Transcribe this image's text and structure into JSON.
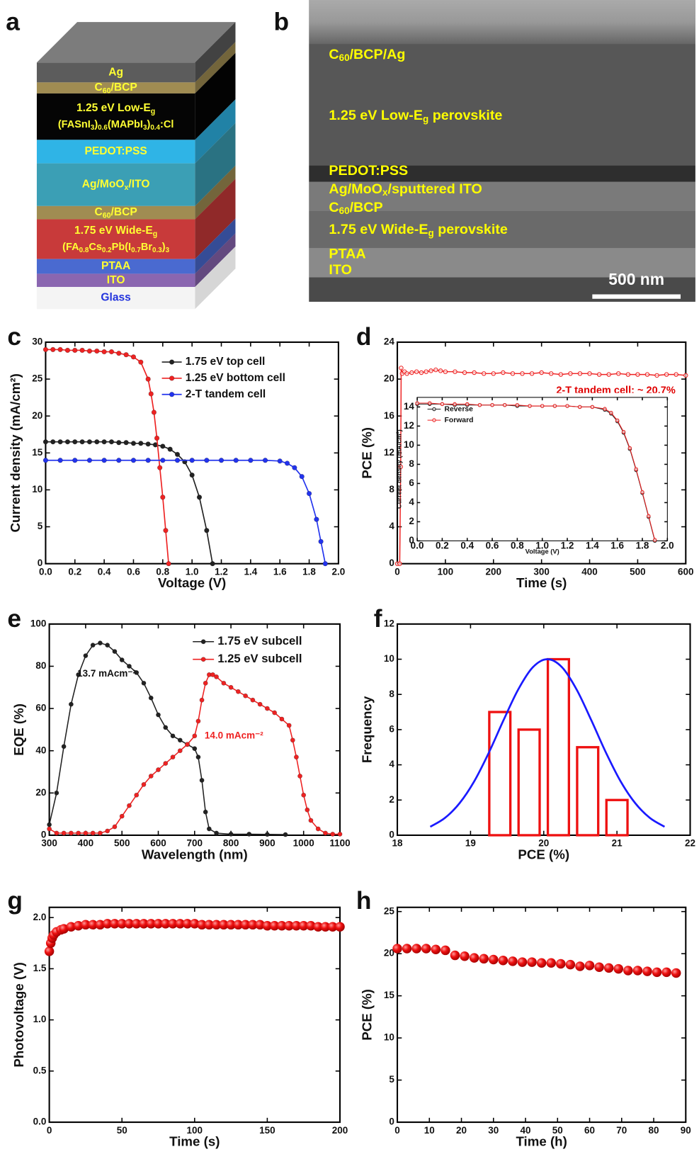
{
  "stack": {
    "panel": "a",
    "text_color": "#ffff33",
    "layers": [
      {
        "color": "#5c5c5c",
        "lines": [
          [
            "Ag"
          ]
        ]
      },
      {
        "color": "#a08c52",
        "lines": [
          [
            "C",
            {
              "sub": "60"
            },
            "/BCP"
          ]
        ]
      },
      {
        "color": "#050505",
        "lines": [
          [
            "1.25 eV Low-E",
            {
              "sub": "g"
            }
          ],
          [
            "(FASnI",
            {
              "sub": "3"
            },
            ")",
            {
              "sub": "0.6"
            },
            "(MAPbI",
            {
              "sub": "3"
            },
            ")",
            {
              "sub": "0.4"
            },
            ":Cl"
          ]
        ]
      },
      {
        "color": "#2fb4e6",
        "lines": [
          [
            "PEDOT:PSS"
          ]
        ]
      },
      {
        "color": "#3b9fb5",
        "lines": [
          [
            "Ag/MoO",
            {
              "sub": "x"
            },
            "/ITO"
          ]
        ]
      },
      {
        "color": "#a08c52",
        "lines": [
          [
            "C",
            {
              "sub": "60"
            },
            "/BCP"
          ]
        ]
      },
      {
        "color": "#c83a3a",
        "lines": [
          [
            "1.75 eV Wide-E",
            {
              "sub": "g"
            }
          ],
          [
            "(FA",
            {
              "sub": "0.8"
            },
            "Cs",
            {
              "sub": "0.2"
            },
            "Pb(I",
            {
              "sub": "0.7"
            },
            "Br",
            {
              "sub": "0.3"
            },
            ")",
            {
              "sub": "3"
            }
          ]
        ]
      },
      {
        "color": "#4a6ad0",
        "lines": [
          [
            "PTAA"
          ]
        ]
      },
      {
        "color": "#8a66b0",
        "lines": [
          [
            "ITO"
          ]
        ]
      },
      {
        "color": "#f4f4f4",
        "text_color": "#2233dd",
        "lines": [
          [
            "Glass"
          ]
        ]
      }
    ]
  },
  "sem": {
    "panel": "b",
    "text_color": "#ffff00",
    "labels": [
      [
        "C",
        {
          "sub": "60"
        },
        "/BCP/Ag"
      ],
      [
        "1.25 eV Low-E",
        {
          "sub": "g"
        },
        " perovskite"
      ],
      [
        "PEDOT:PSS"
      ],
      [
        "Ag/MoO",
        {
          "sub": "x"
        },
        "/sputtered ITO"
      ],
      [
        "C",
        {
          "sub": "60"
        },
        "/BCP"
      ],
      [
        "1.75 eV Wide-E",
        {
          "sub": "g"
        },
        " perovskite"
      ],
      [
        "PTAA"
      ],
      [
        "ITO"
      ]
    ],
    "scale_bar": "500 nm"
  },
  "chart_data": [
    {
      "type": "line",
      "panel": "c",
      "x_label": "Voltage (V)",
      "y_label": "Current density (mA/cm²)",
      "xlim": [
        0,
        2
      ],
      "xticks": [
        {
          "value": 0,
          "label": "0.0"
        },
        0.2,
        0.4,
        0.6,
        0.8,
        {
          "value": 1,
          "label": "1.0"
        },
        1.2,
        1.4,
        1.6,
        1.8,
        {
          "value": 2,
          "label": "2.0"
        }
      ],
      "ylim": [
        0,
        30
      ],
      "yticks": [
        0,
        5,
        10,
        15,
        20,
        25,
        30
      ],
      "legend": "upper right",
      "series": [
        {
          "name": "1.75 eV top cell",
          "color": "#222222",
          "x": [
            0,
            0.05,
            0.1,
            0.15,
            0.2,
            0.25,
            0.3,
            0.35,
            0.4,
            0.45,
            0.5,
            0.55,
            0.6,
            0.65,
            0.7,
            0.75,
            0.8,
            0.85,
            0.9,
            0.95,
            1.0,
            1.05,
            1.1,
            1.14
          ],
          "values": [
            16.5,
            16.5,
            16.5,
            16.5,
            16.5,
            16.5,
            16.5,
            16.5,
            16.5,
            16.5,
            16.4,
            16.4,
            16.3,
            16.3,
            16.2,
            16.1,
            15.9,
            15.5,
            14.8,
            13.8,
            12.0,
            9.0,
            4.5,
            0
          ]
        },
        {
          "name": "1.25 eV bottom cell",
          "color": "#ee2222",
          "x": [
            0,
            0.05,
            0.1,
            0.15,
            0.2,
            0.25,
            0.3,
            0.35,
            0.4,
            0.45,
            0.5,
            0.55,
            0.6,
            0.65,
            0.7,
            0.72,
            0.74,
            0.76,
            0.78,
            0.8,
            0.82,
            0.84
          ],
          "values": [
            29.0,
            29.0,
            29.0,
            28.9,
            28.9,
            28.9,
            28.8,
            28.8,
            28.7,
            28.7,
            28.5,
            28.3,
            28.0,
            27.3,
            25.0,
            23.0,
            20.5,
            17.0,
            13.0,
            9.0,
            4.5,
            0
          ]
        },
        {
          "name": "2-T tandem cell",
          "color": "#2233ee",
          "x": [
            0,
            0.1,
            0.2,
            0.3,
            0.4,
            0.5,
            0.6,
            0.7,
            0.8,
            0.9,
            1.0,
            1.1,
            1.2,
            1.3,
            1.4,
            1.5,
            1.6,
            1.65,
            1.7,
            1.75,
            1.8,
            1.85,
            1.88,
            1.91
          ],
          "values": [
            14.0,
            14.0,
            14.0,
            14.0,
            14.0,
            14.0,
            14.0,
            14.0,
            14.0,
            14.0,
            14.0,
            14.0,
            14.0,
            14.0,
            14.0,
            14.0,
            13.9,
            13.6,
            13.0,
            11.8,
            9.5,
            6.0,
            3.0,
            0
          ]
        }
      ]
    },
    {
      "type": "line",
      "panel": "d",
      "x_label": "Time (s)",
      "y_label": "PCE (%)",
      "xlim": [
        0,
        600
      ],
      "xticks": [
        0,
        100,
        200,
        300,
        400,
        500,
        600
      ],
      "ylim": [
        0,
        24
      ],
      "yticks": [
        0,
        4,
        8,
        12,
        16,
        20,
        24
      ],
      "annotations": [
        {
          "text": "2-T tandem cell: ~ 20.7%",
          "color": "#e00000"
        }
      ],
      "series": [
        {
          "color": "#ee2222",
          "x": [
            0,
            5,
            7,
            8,
            10,
            15,
            20,
            30,
            40,
            50,
            60,
            70,
            80,
            90,
            100,
            120,
            140,
            160,
            180,
            200,
            220,
            240,
            260,
            280,
            300,
            320,
            340,
            360,
            380,
            400,
            420,
            440,
            460,
            480,
            500,
            520,
            540,
            560,
            580,
            600
          ],
          "values": [
            0,
            0,
            10.5,
            21.2,
            20.6,
            20.8,
            20.6,
            20.7,
            20.8,
            20.7,
            20.8,
            20.9,
            21.0,
            20.9,
            20.8,
            20.8,
            20.7,
            20.7,
            20.6,
            20.6,
            20.7,
            20.6,
            20.6,
            20.6,
            20.7,
            20.6,
            20.5,
            20.6,
            20.6,
            20.6,
            20.5,
            20.5,
            20.6,
            20.5,
            20.5,
            20.5,
            20.4,
            20.5,
            20.5,
            20.4
          ]
        }
      ]
    },
    {
      "type": "line",
      "x_label": "Voltage (V)",
      "y_label": "Current density (mA/cm²)",
      "xlim": [
        0,
        2
      ],
      "xticks": [
        {
          "value": 0,
          "label": "0.0"
        },
        0.2,
        0.4,
        0.6,
        0.8,
        {
          "value": 1,
          "label": "1.0"
        },
        1.2,
        1.4,
        1.6,
        1.8,
        {
          "value": 2,
          "label": "2.0"
        }
      ],
      "ylim": [
        0,
        15
      ],
      "yticks": [
        0,
        2,
        4,
        6,
        8,
        10,
        12,
        14
      ],
      "legend": "upper left",
      "x": [
        0,
        0.1,
        0.2,
        0.3,
        0.4,
        0.5,
        0.6,
        0.7,
        0.8,
        0.9,
        1.0,
        1.1,
        1.2,
        1.3,
        1.4,
        1.5,
        1.55,
        1.6,
        1.65,
        1.7,
        1.75,
        1.8,
        1.85,
        1.9
      ],
      "series": [
        {
          "name": "Reverse",
          "color": "#222222",
          "values": [
            14.3,
            14.3,
            14.3,
            14.2,
            14.2,
            14.2,
            14.2,
            14.2,
            14.1,
            14.1,
            14.1,
            14.1,
            14.1,
            14.0,
            14.0,
            13.7,
            13.3,
            12.5,
            11.3,
            9.6,
            7.4,
            5.0,
            2.5,
            0
          ]
        },
        {
          "name": "Forward",
          "color": "#ee2222",
          "values": [
            14.4,
            14.4,
            14.3,
            14.3,
            14.3,
            14.2,
            14.2,
            14.2,
            14.2,
            14.1,
            14.1,
            14.1,
            14.1,
            14.0,
            14.0,
            13.8,
            13.4,
            12.6,
            11.4,
            9.7,
            7.5,
            5.1,
            2.6,
            0.1
          ]
        }
      ]
    },
    {
      "type": "line",
      "panel": "e",
      "x_label": "Wavelength (nm)",
      "y_label": "EQE (%)",
      "xlim": [
        300,
        1100
      ],
      "xticks": [
        300,
        400,
        500,
        600,
        700,
        800,
        900,
        1000,
        1100
      ],
      "ylim": [
        0,
        100
      ],
      "yticks": [
        0,
        20,
        40,
        60,
        80,
        100
      ],
      "legend": "upper right",
      "annotations": [
        {
          "text": "13.7 mAcm⁻²",
          "color": "#111111"
        },
        {
          "text": "14.0 mAcm⁻²",
          "color": "#ee2222"
        }
      ],
      "series": [
        {
          "name": "1.75 eV subcell",
          "color": "#222222",
          "x": [
            300,
            320,
            340,
            360,
            380,
            400,
            420,
            440,
            460,
            480,
            500,
            520,
            540,
            560,
            580,
            600,
            620,
            640,
            660,
            680,
            700,
            710,
            720,
            730,
            740,
            760,
            800,
            850,
            900,
            950
          ],
          "values": [
            5,
            20,
            42,
            62,
            76,
            85,
            90,
            91,
            90,
            87,
            83,
            80,
            77,
            72,
            65,
            57,
            51,
            47,
            45,
            43,
            41,
            37,
            26,
            11,
            3,
            1,
            0.5,
            0.5,
            0.4,
            0.3
          ]
        },
        {
          "name": "1.25 eV subcell",
          "color": "#ee2222",
          "x": [
            300,
            320,
            340,
            360,
            380,
            400,
            420,
            440,
            460,
            480,
            500,
            520,
            540,
            560,
            580,
            600,
            620,
            640,
            660,
            680,
            700,
            710,
            720,
            730,
            740,
            750,
            760,
            780,
            800,
            820,
            840,
            860,
            880,
            900,
            920,
            940,
            960,
            970,
            980,
            990,
            1000,
            1010,
            1020,
            1040,
            1060,
            1080,
            1100
          ],
          "values": [
            3,
            1,
            1,
            1,
            1,
            1,
            1,
            1,
            2,
            4,
            9,
            14,
            19,
            24,
            28,
            31,
            34,
            37,
            40,
            43,
            47,
            54,
            64,
            72,
            76,
            76,
            75,
            72,
            70,
            68,
            66,
            64,
            62,
            60,
            58,
            55,
            52,
            45,
            37,
            28,
            19,
            12,
            7,
            3,
            1,
            0.5,
            0.5
          ]
        }
      ]
    },
    {
      "type": "histogram",
      "panel": "f",
      "x_label": "PCE (%)",
      "y_label": "Frequency",
      "xlim": [
        18,
        22
      ],
      "xticks": [
        18,
        19,
        20,
        21,
        22
      ],
      "ylim": [
        0,
        12
      ],
      "yticks": [
        0,
        2,
        4,
        6,
        8,
        10,
        12
      ],
      "bins": [
        19.2,
        19.6,
        20.0,
        20.4,
        20.8,
        21.2
      ],
      "values": [
        7,
        6,
        10,
        5,
        2
      ],
      "color": "#ee1111",
      "fit": {
        "color": "#1a1aff",
        "x": [
          18.45,
          18.65,
          18.85,
          19.05,
          19.25,
          19.45,
          19.65,
          19.85,
          20.05,
          20.25,
          20.45,
          20.65,
          20.85,
          21.05,
          21.25,
          21.45,
          21.65
        ],
        "values": [
          0.48,
          0.98,
          1.82,
          3.06,
          4.69,
          6.53,
          8.27,
          9.54,
          10,
          9.54,
          8.27,
          6.53,
          4.69,
          3.06,
          1.82,
          0.98,
          0.48
        ]
      }
    },
    {
      "type": "scatter",
      "panel": "g",
      "x_label": "Time (s)",
      "y_label": "Photovoltage (V)",
      "xlim": [
        0,
        200
      ],
      "xticks": [
        0,
        50,
        100,
        150,
        200
      ],
      "ylim": [
        0,
        2.1
      ],
      "yticks": [
        {
          "value": 0,
          "label": "0.0"
        },
        0.5,
        {
          "value": 1,
          "label": "1.0"
        },
        1.5,
        {
          "value": 2,
          "label": "2.0"
        }
      ],
      "series": [
        {
          "color": "#ee1111",
          "x": [
            0,
            1,
            2,
            3,
            5,
            8,
            10,
            15,
            20,
            25,
            30,
            35,
            40,
            45,
            50,
            55,
            60,
            65,
            70,
            75,
            80,
            85,
            90,
            95,
            100,
            105,
            110,
            115,
            120,
            125,
            130,
            135,
            140,
            145,
            150,
            155,
            160,
            165,
            170,
            175,
            180,
            185,
            190,
            195,
            200
          ],
          "values": [
            1.67,
            1.75,
            1.8,
            1.83,
            1.86,
            1.88,
            1.89,
            1.91,
            1.92,
            1.93,
            1.93,
            1.93,
            1.94,
            1.94,
            1.94,
            1.94,
            1.94,
            1.94,
            1.94,
            1.94,
            1.94,
            1.94,
            1.94,
            1.94,
            1.94,
            1.93,
            1.93,
            1.93,
            1.93,
            1.93,
            1.93,
            1.93,
            1.93,
            1.93,
            1.92,
            1.92,
            1.92,
            1.92,
            1.92,
            1.92,
            1.92,
            1.91,
            1.91,
            1.91,
            1.91
          ]
        }
      ]
    },
    {
      "type": "scatter",
      "panel": "h",
      "x_label": "Time (h)",
      "y_label": "PCE (%)",
      "xlim": [
        0,
        90
      ],
      "xticks": [
        0,
        10,
        20,
        30,
        40,
        50,
        60,
        70,
        80,
        90
      ],
      "ylim": [
        0,
        25.5
      ],
      "yticks": [
        0,
        5,
        10,
        15,
        20,
        25
      ],
      "series": [
        {
          "color": "#ee1111",
          "x": [
            0,
            3,
            6,
            9,
            12,
            15,
            18,
            21,
            24,
            27,
            30,
            33,
            36,
            39,
            42,
            45,
            48,
            51,
            54,
            57,
            60,
            63,
            66,
            69,
            72,
            75,
            78,
            81,
            84,
            87
          ],
          "values": [
            20.6,
            20.6,
            20.6,
            20.6,
            20.5,
            20.4,
            19.8,
            19.7,
            19.5,
            19.4,
            19.3,
            19.2,
            19.1,
            19.0,
            19.0,
            18.9,
            18.9,
            18.8,
            18.7,
            18.5,
            18.6,
            18.4,
            18.3,
            18.2,
            18.0,
            18.0,
            17.9,
            17.8,
            17.8,
            17.7
          ]
        }
      ]
    }
  ]
}
